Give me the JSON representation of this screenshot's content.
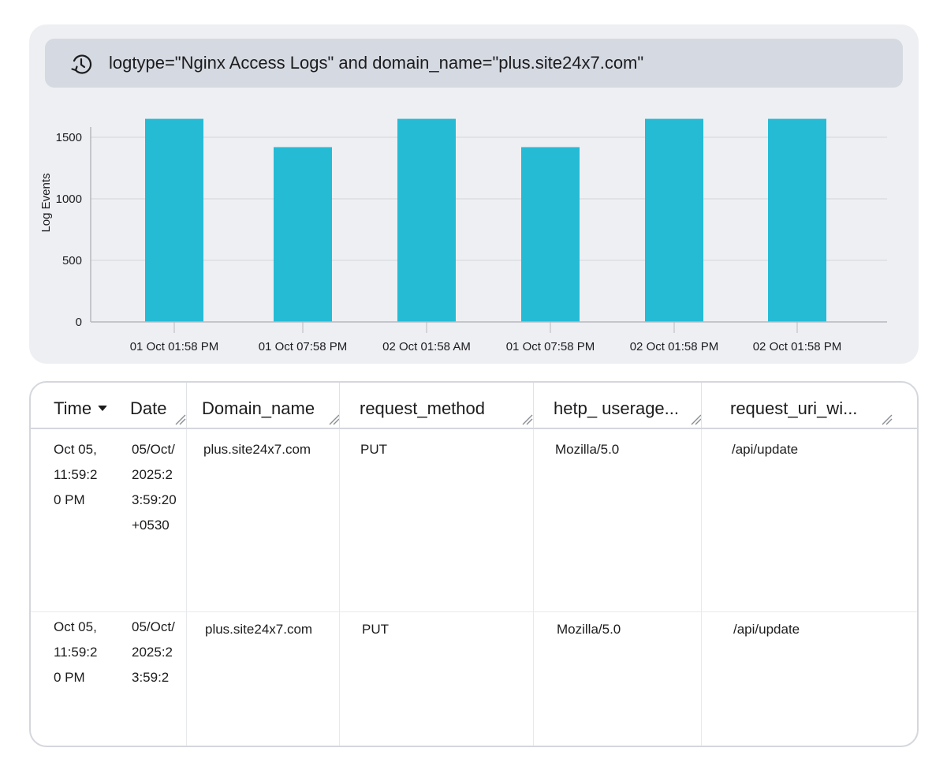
{
  "query": {
    "icon": "history-icon",
    "text": "logtype=\"Nginx Access Logs\" and domain_name=\"plus.site24x7.com\""
  },
  "chart_data": {
    "type": "bar",
    "categories": [
      "01 Oct 01:58 PM",
      "01 Oct 07:58 PM",
      "02 Oct 01:58 AM",
      "01 Oct 07:58 PM",
      "02 Oct 01:58 PM",
      "02 Oct 01:58 PM"
    ],
    "values": [
      1650,
      1420,
      1650,
      1420,
      1650,
      1650
    ],
    "ylabel": "Log Events",
    "yticks": [
      0,
      500,
      1000,
      1500
    ],
    "ylim": [
      0,
      1700
    ],
    "grid": true,
    "bar_color": "#25bbd5"
  },
  "table": {
    "columns": [
      {
        "label": "Time",
        "sorted": "desc"
      },
      {
        "label": "Date"
      },
      {
        "label": "Domain_name"
      },
      {
        "label": "request_method"
      },
      {
        "label": "hetp_ userage..."
      },
      {
        "label": "request_uri_wi..."
      }
    ],
    "rows": [
      {
        "time": "Oct 05, 11:59:20 PM",
        "date": "05/Oct/2025:23:59:20 +0530",
        "domain": "plus.site24x7.com",
        "method": "PUT",
        "agent": "Mozilla/5.0",
        "uri": "/api/update"
      },
      {
        "time": "Oct 05, 11:59:20 PM",
        "date": "05/Oct/2025:23:59:2",
        "domain": "plus.site24x7.com",
        "method": "PUT",
        "agent": "Mozilla/5.0",
        "uri": "/api/update"
      }
    ]
  }
}
